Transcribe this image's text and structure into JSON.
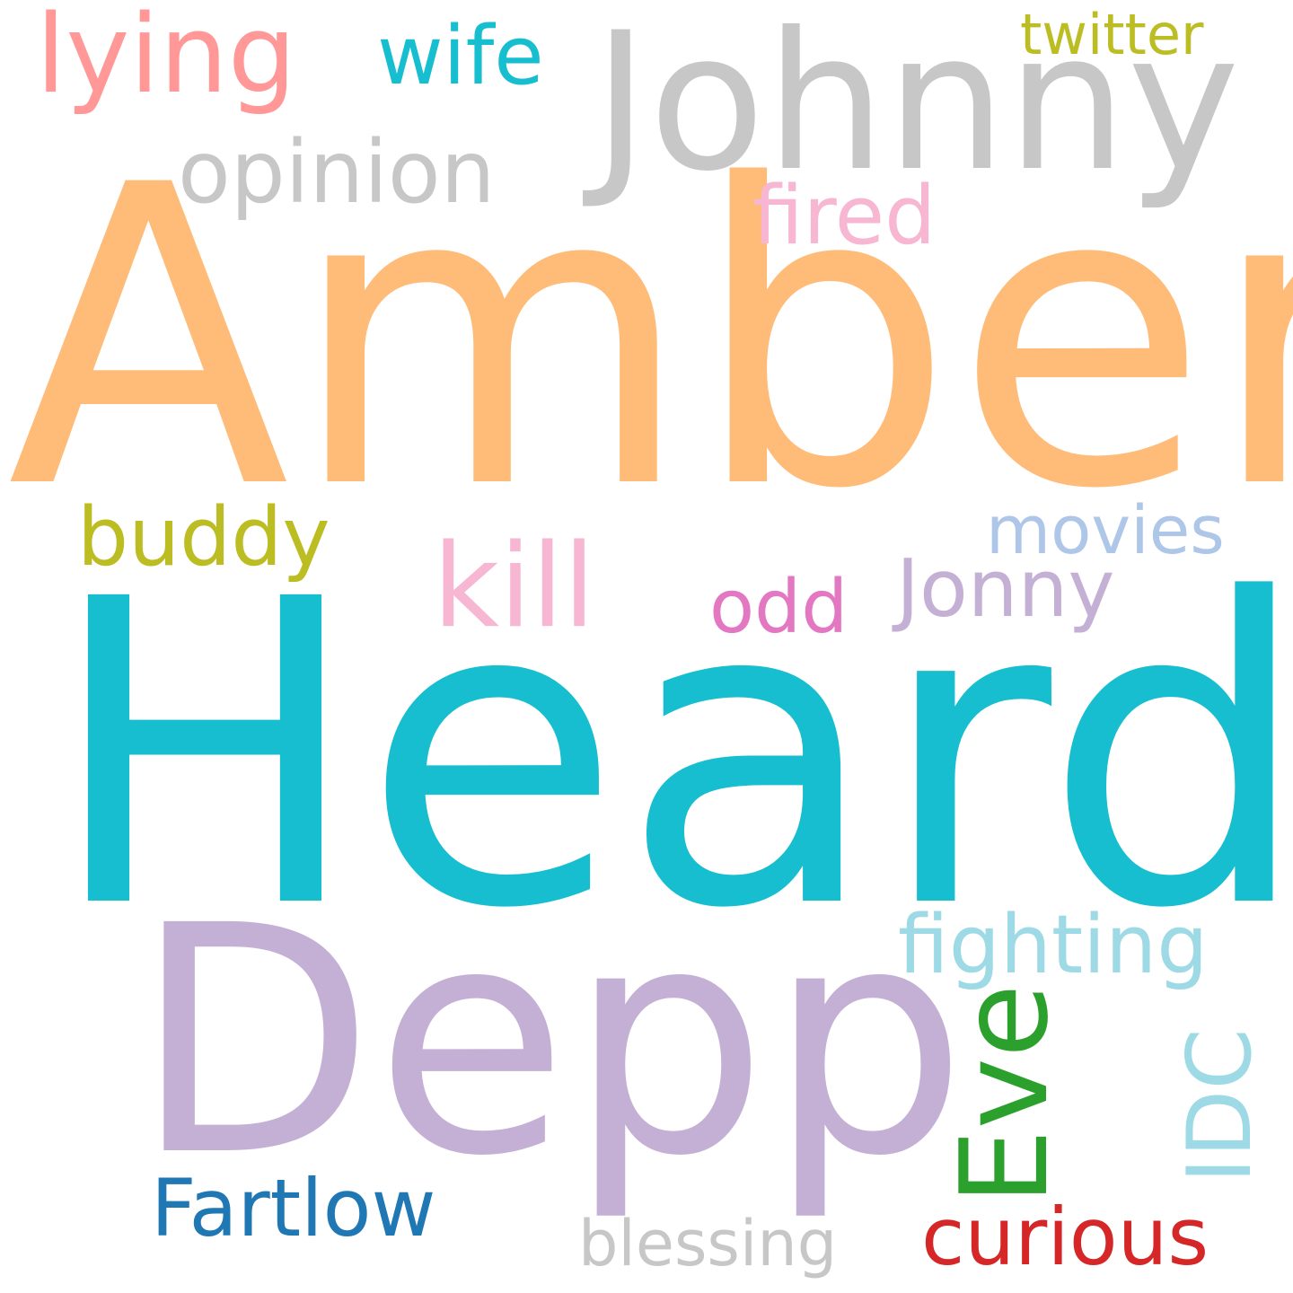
{
  "words": {
    "amber": {
      "text": "Amber",
      "color": "#ffbb78"
    },
    "heard": {
      "text": "Heard",
      "color": "#17becf"
    },
    "depp": {
      "text": "Depp",
      "color": "#c5b0d5"
    },
    "johnny": {
      "text": "Johnny",
      "color": "#c7c7c7"
    },
    "lying": {
      "text": "lying",
      "color": "#ff9896"
    },
    "wife": {
      "text": "wife",
      "color": "#17becf"
    },
    "twitter": {
      "text": "twitter",
      "color": "#bcbd22"
    },
    "opinion": {
      "text": "opinion",
      "color": "#c7c7c7"
    },
    "fired": {
      "text": "fired",
      "color": "#f7b6d2"
    },
    "buddy": {
      "text": "buddy",
      "color": "#bcbd22"
    },
    "kill": {
      "text": "kill",
      "color": "#f7b6d2"
    },
    "odd": {
      "text": "odd",
      "color": "#e377c2"
    },
    "movies": {
      "text": "movies",
      "color": "#aec7e8"
    },
    "jonny": {
      "text": "Jonny",
      "color": "#c5b0d5"
    },
    "fighting": {
      "text": "fighting",
      "color": "#9edae5"
    },
    "eve": {
      "text": "Eve",
      "color": "#2ca02c"
    },
    "idc": {
      "text": "IDC",
      "color": "#9edae5"
    },
    "fartlow": {
      "text": "Fartlow",
      "color": "#1f77b4"
    },
    "blessing": {
      "text": "blessing",
      "color": "#c7c7c7"
    },
    "curious": {
      "text": "curious",
      "color": "#d62728"
    }
  }
}
